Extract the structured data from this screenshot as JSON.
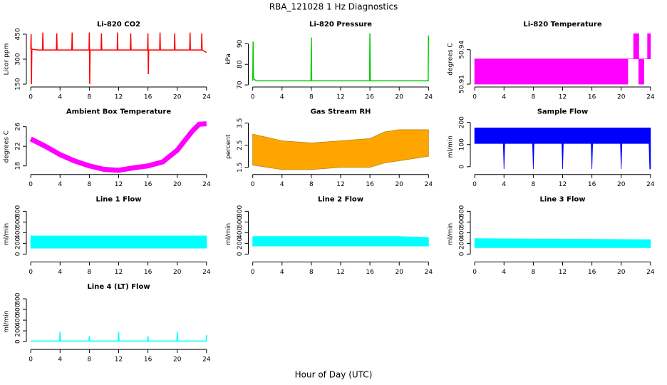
{
  "title": "RBA_121028  1 Hz Diagnostics",
  "xlabel": "Hour of Day (UTC)",
  "chart_data": [
    {
      "type": "line",
      "title": "Li-820 CO2",
      "ylabel": "Licor ppm",
      "color": "#ff0000",
      "x": [
        0,
        0.05,
        0.1,
        0.15,
        1,
        1.6,
        1.65,
        1.7,
        3,
        3.5,
        3.55,
        3.6,
        4.5,
        5.6,
        5.65,
        5.7,
        7,
        7.95,
        8,
        8.05,
        8.1,
        9,
        9.6,
        9.65,
        9.7,
        11,
        11.8,
        11.85,
        11.9,
        13,
        13.6,
        13.65,
        13.7,
        15,
        15.95,
        16,
        16.05,
        16.1,
        17,
        17.6,
        17.65,
        17.7,
        19,
        19.6,
        19.65,
        19.7,
        21,
        21.7,
        21.75,
        21.8,
        23,
        23.3,
        23.35,
        23.4,
        24
      ],
      "values": [
        360,
        450,
        150,
        360,
        355,
        355,
        460,
        355,
        355,
        355,
        455,
        355,
        355,
        355,
        460,
        355,
        355,
        355,
        460,
        150,
        355,
        355,
        355,
        455,
        355,
        355,
        355,
        460,
        355,
        355,
        355,
        455,
        355,
        355,
        355,
        455,
        210,
        355,
        355,
        355,
        460,
        355,
        355,
        355,
        455,
        355,
        355,
        355,
        460,
        355,
        355,
        355,
        455,
        355,
        340
      ],
      "xlim": [
        -0.6,
        24.6
      ],
      "xticks": [
        0,
        4,
        8,
        12,
        16,
        20,
        24
      ],
      "ylim": [
        133,
        467
      ],
      "yticks": [
        150,
        300,
        450
      ]
    },
    {
      "type": "line",
      "title": "Li-820 Pressure",
      "ylabel": "kPa",
      "color": "#00cc00",
      "x": [
        0,
        0.05,
        0.1,
        0.5,
        4,
        7.95,
        8,
        8.05,
        12,
        15.95,
        16,
        16.05,
        20,
        23.95,
        24
      ],
      "values": [
        72,
        91,
        73,
        72,
        72,
        72,
        93,
        72,
        72,
        72,
        95,
        72,
        72,
        72,
        94
      ],
      "xlim": [
        -0.6,
        24.6
      ],
      "xticks": [
        0,
        4,
        8,
        12,
        16,
        20,
        24
      ],
      "ylim": [
        69,
        96
      ],
      "yticks": [
        70,
        80,
        90
      ]
    },
    {
      "type": "band",
      "title": "Li-820 Temperature",
      "ylabel": "degrees C",
      "color": "#ff00ff",
      "x": [
        0,
        20.9,
        20.9,
        21.7,
        21.7,
        22.4,
        22.4,
        23.1,
        23.1,
        23.6,
        23.6,
        24
      ],
      "lower": [
        50.91,
        50.91,
        50.932,
        50.932,
        50.932,
        50.932,
        50.91,
        50.91,
        50.932,
        50.932,
        50.932,
        50.932
      ],
      "upper": [
        50.932,
        50.932,
        50.932,
        50.932,
        50.954,
        50.954,
        50.932,
        50.932,
        50.932,
        50.932,
        50.954,
        50.954
      ],
      "xlim": [
        -0.6,
        24.6
      ],
      "xticks": [
        0,
        4,
        8,
        12,
        16,
        20,
        24
      ],
      "ylim": [
        50.9075,
        50.956
      ],
      "yticks": [
        50.91,
        50.94
      ]
    },
    {
      "type": "line",
      "title": "Ambient Box Temperature",
      "ylabel": "degrees C",
      "color": "#ff00ff",
      "x": [
        0,
        2,
        4,
        6,
        8,
        10,
        12,
        14,
        16,
        18,
        20,
        22,
        23,
        24
      ],
      "values": [
        23.5,
        22,
        20.3,
        19,
        18,
        17.3,
        17.1,
        17.6,
        18,
        18.8,
        21.2,
        25,
        26.5,
        26.6
      ],
      "xlim": [
        -0.6,
        24.6
      ],
      "xticks": [
        0,
        4,
        8,
        12,
        16,
        20,
        24
      ],
      "ylim": [
        16.25,
        27.6
      ],
      "yticks": [
        18,
        22,
        26
      ]
    },
    {
      "type": "band",
      "title": "Gas Stream RH",
      "ylabel": "percent",
      "color": "#ffa500",
      "x": [
        0,
        4,
        8,
        12,
        16,
        18,
        20,
        24
      ],
      "lower": [
        1.6,
        1.4,
        1.4,
        1.5,
        1.5,
        1.7,
        1.8,
        2.0
      ],
      "upper": [
        3.0,
        2.7,
        2.6,
        2.7,
        2.8,
        3.1,
        3.2,
        3.2
      ],
      "xlim": [
        -0.6,
        24.6
      ],
      "xticks": [
        0,
        4,
        8,
        12,
        16,
        20,
        24
      ],
      "ylim": [
        1.18,
        3.69
      ],
      "yticks": [
        1.5,
        2.5,
        3.5
      ]
    },
    {
      "type": "band",
      "title": "Sample Flow",
      "ylabel": "ml/min",
      "color": "#0000ff",
      "x": [
        0,
        3.9,
        4,
        4.1,
        7.9,
        8,
        8.1,
        11.9,
        12,
        12.1,
        15.9,
        16,
        16.1,
        19.9,
        20,
        20.1,
        23.8,
        23.9,
        24
      ],
      "lower": [
        105,
        105,
        -10,
        105,
        105,
        -10,
        105,
        105,
        -10,
        105,
        105,
        -10,
        105,
        105,
        -10,
        105,
        105,
        -10,
        -10
      ],
      "upper": [
        175,
        175,
        175,
        175,
        175,
        175,
        175,
        175,
        175,
        175,
        175,
        175,
        175,
        175,
        175,
        175,
        175,
        175,
        175
      ],
      "xlim": [
        -0.6,
        24.6
      ],
      "xticks": [
        0,
        4,
        8,
        12,
        16,
        20,
        24
      ],
      "ylim": [
        -35,
        216
      ],
      "yticks": [
        0,
        100,
        200
      ]
    },
    {
      "type": "band",
      "title": "Line 1 Flow",
      "ylabel": "ml/min",
      "color": "#00ffff",
      "x": [
        0,
        24
      ],
      "lower": [
        110,
        110
      ],
      "upper": [
        340,
        340
      ],
      "xlim": [
        -0.6,
        24.6
      ],
      "xticks": [
        0,
        4,
        8,
        12,
        16,
        20,
        24
      ],
      "ylim": [
        -147,
        893
      ],
      "yticks": [
        0,
        200,
        400,
        600,
        800
      ]
    },
    {
      "type": "band",
      "title": "Line 2 Flow",
      "ylabel": "ml/min",
      "color": "#00ffff",
      "x": [
        0,
        20,
        24
      ],
      "lower": [
        150,
        150,
        150
      ],
      "upper": [
        330,
        330,
        310
      ],
      "xlim": [
        -0.6,
        24.6
      ],
      "xticks": [
        0,
        4,
        8,
        12,
        16,
        20,
        24
      ],
      "ylim": [
        -147,
        893
      ],
      "yticks": [
        0,
        200,
        400,
        600,
        800
      ]
    },
    {
      "type": "band",
      "title": "Line 3 Flow",
      "ylabel": "ml/min",
      "color": "#00ffff",
      "x": [
        0,
        24
      ],
      "lower": [
        120,
        120
      ],
      "upper": [
        290,
        270
      ],
      "xlim": [
        -0.6,
        24.6
      ],
      "xticks": [
        0,
        4,
        8,
        12,
        16,
        20,
        24
      ],
      "ylim": [
        -147,
        893
      ],
      "yticks": [
        0,
        200,
        400,
        600,
        800
      ]
    },
    {
      "type": "line",
      "title": "Line 4 (LT) Flow",
      "ylabel": "ml/min",
      "color": "#00ffff",
      "x": [
        0,
        3.95,
        4,
        4.05,
        7.95,
        8,
        8.05,
        11.95,
        12,
        12.05,
        15.95,
        16,
        16.05,
        19.95,
        20,
        20.05,
        23.95,
        24
      ],
      "values": [
        10,
        10,
        180,
        10,
        10,
        100,
        10,
        10,
        180,
        10,
        10,
        100,
        10,
        10,
        180,
        10,
        10,
        120
      ],
      "xlim": [
        -0.6,
        24.6
      ],
      "xticks": [
        0,
        4,
        8,
        12,
        16,
        20,
        24
      ],
      "ylim": [
        -147,
        893
      ],
      "yticks": [
        0,
        200,
        400,
        600,
        800
      ]
    }
  ]
}
